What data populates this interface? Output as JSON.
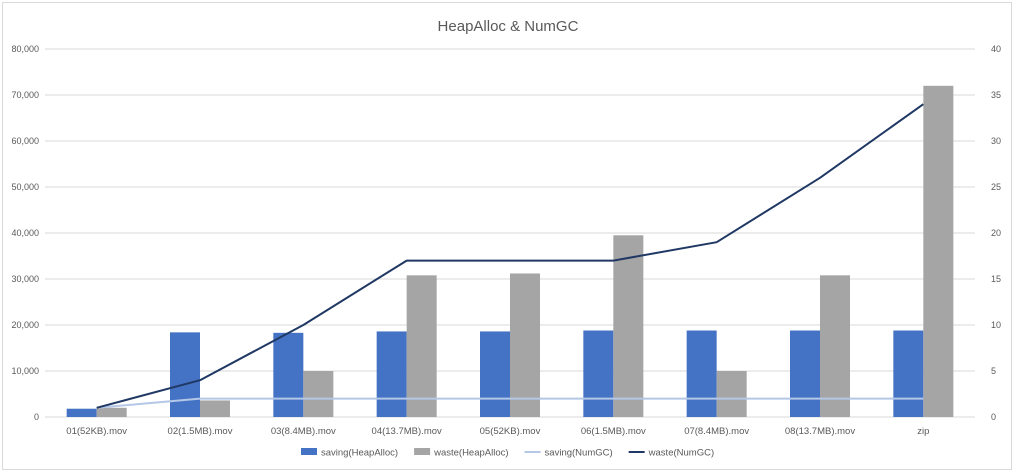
{
  "chart_data": {
    "type": "bar",
    "title": "HeapAlloc & NumGC",
    "categories": [
      "01(52KB).mov",
      "02(1.5MB).mov",
      "03(8.4MB).mov",
      "04(13.7MB).mov",
      "05(52KB).mov",
      "06(1.5MB).mov",
      "07(8.4MB).mov",
      "08(13.7MB).mov",
      "zip"
    ],
    "ylim": [
      0,
      80000
    ],
    "y_ticks": [
      "0",
      "10,000",
      "20,000",
      "30,000",
      "40,000",
      "50,000",
      "60,000",
      "70,000",
      "80,000"
    ],
    "y2lim": [
      0,
      40
    ],
    "y2_ticks": [
      "0",
      "5",
      "10",
      "15",
      "20",
      "25",
      "30",
      "35",
      "40"
    ],
    "grid": true,
    "legend_position": "bottom",
    "bar_series": [
      {
        "name": "saving(HeapAlloc)",
        "color": "#4472c4",
        "axis": "left",
        "values": [
          1800,
          18400,
          18300,
          18600,
          18600,
          18800,
          18800,
          18800,
          18800
        ]
      },
      {
        "name": "waste(HeapAlloc)",
        "color": "#a5a5a5",
        "axis": "left",
        "values": [
          2000,
          3600,
          10000,
          30800,
          31200,
          39500,
          10000,
          30800,
          72000
        ]
      }
    ],
    "line_series": [
      {
        "name": "saving(NumGC)",
        "color": "#b4c7e7",
        "axis": "right",
        "values": [
          1,
          2,
          2,
          2,
          2,
          2,
          2,
          2,
          2
        ]
      },
      {
        "name": "waste(NumGC)",
        "color": "#203864",
        "axis": "right",
        "values": [
          1,
          4,
          10,
          17,
          17,
          17,
          19,
          26,
          34
        ]
      }
    ]
  }
}
